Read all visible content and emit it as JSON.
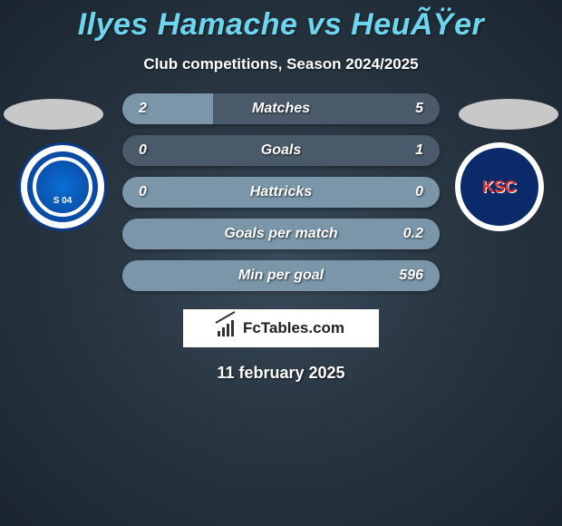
{
  "header": {
    "title": "Ilyes Hamache vs HeuÃŸer",
    "subtitle": "Club competitions, Season 2024/2025",
    "title_color": "#6dd5ed",
    "subtitle_color": "#ffffff"
  },
  "teams": {
    "left": {
      "badge_label": "S 04",
      "ellipse_color": "#c8c8c8"
    },
    "right": {
      "badge_label": "KSC",
      "ellipse_color": "#c8c8c8"
    }
  },
  "stats": {
    "type": "comparison-bars",
    "bar_bg": "#4a5a6a",
    "bar_fill": "#7a96a8",
    "text_color": "#ffffff",
    "rows": [
      {
        "label": "Matches",
        "left": "2",
        "right": "5",
        "fill_pct": 28.6
      },
      {
        "label": "Goals",
        "left": "0",
        "right": "1",
        "fill_pct": 0
      },
      {
        "label": "Hattricks",
        "left": "0",
        "right": "0",
        "fill_pct": 100
      },
      {
        "label": "Goals per match",
        "left": "",
        "right": "0.2",
        "fill_pct": 100
      },
      {
        "label": "Min per goal",
        "left": "",
        "right": "596",
        "fill_pct": 100
      }
    ]
  },
  "branding": {
    "text": "FcTables.com"
  },
  "footer": {
    "date": "11 february 2025"
  }
}
